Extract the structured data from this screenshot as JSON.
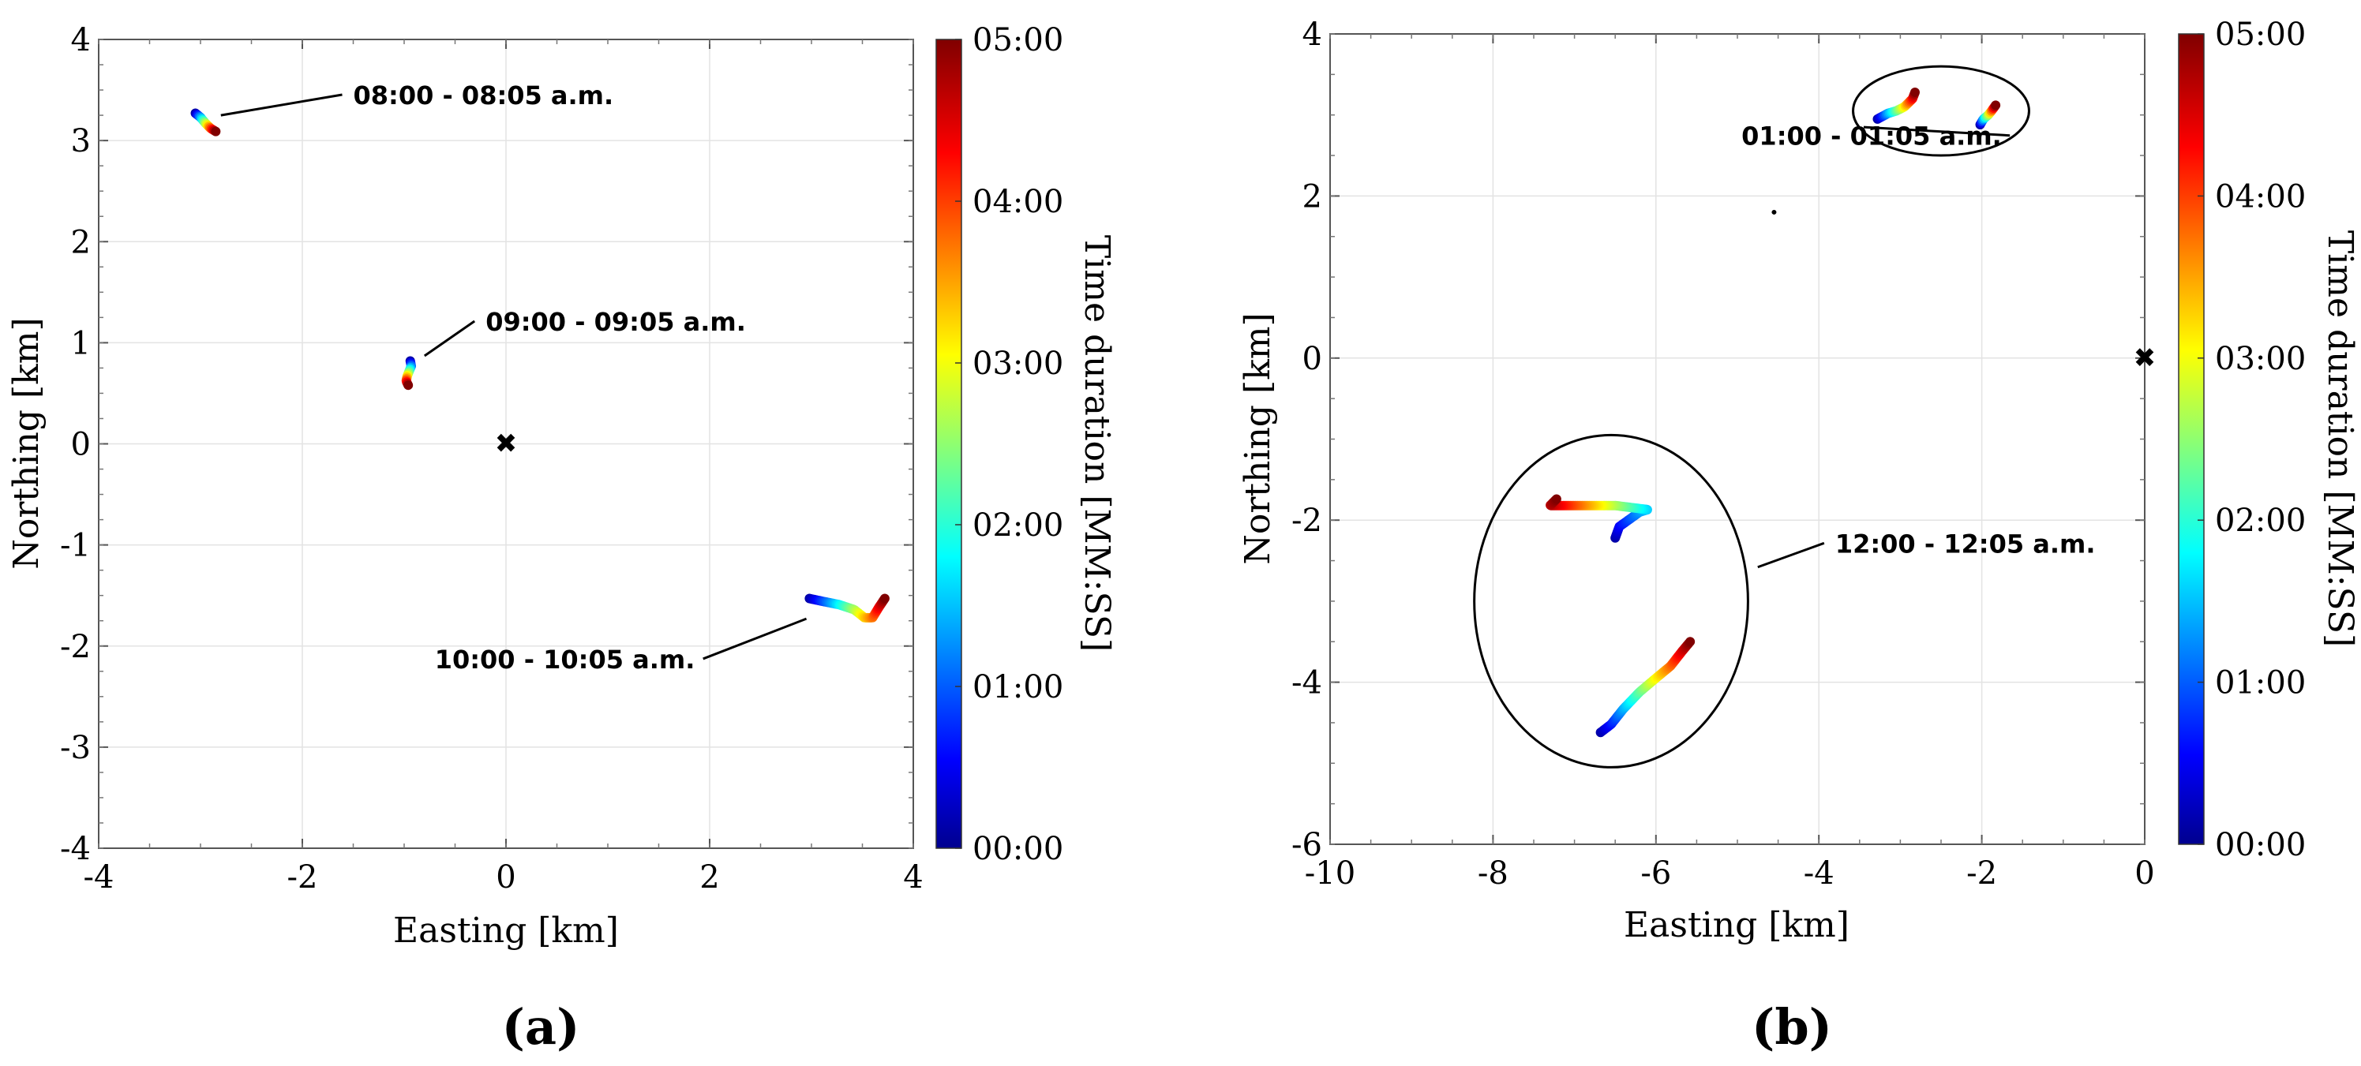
{
  "chart_data": [
    {
      "type": "scatter",
      "panel_label": "(a)",
      "xlabel": "Easting [km]",
      "ylabel": "Northing [km]",
      "xlim": [
        -4,
        4
      ],
      "ylim": [
        -4,
        4
      ],
      "xticks": [
        -4,
        -2,
        0,
        2,
        4
      ],
      "yticks": [
        -4,
        -3,
        -2,
        -1,
        0,
        1,
        2,
        3,
        4
      ],
      "xtick_labels": [
        "-4",
        "-2",
        "0",
        "2",
        "4"
      ],
      "ytick_labels": [
        "-4",
        "-3",
        "-2",
        "-1",
        "0",
        "1",
        "2",
        "3",
        "4"
      ],
      "grid": true,
      "colorbar": {
        "label": "Time duration [MM:SS]",
        "range": [
          0,
          300
        ],
        "ticks": [
          "00:00",
          "01:00",
          "02:00",
          "03:00",
          "04:00",
          "05:00"
        ],
        "colormap": "jet"
      },
      "marker": {
        "symbol": "x",
        "x": 0,
        "y": 0
      },
      "tracks": [
        {
          "points": [
            [
              -3.05,
              3.27
            ],
            [
              -3.0,
              3.23
            ],
            [
              -2.95,
              3.17
            ],
            [
              -2.9,
              3.12
            ],
            [
              -2.85,
              3.09
            ]
          ]
        },
        {
          "points": [
            [
              -0.94,
              0.82
            ],
            [
              -0.93,
              0.77
            ],
            [
              -0.95,
              0.72
            ],
            [
              -0.97,
              0.67
            ],
            [
              -0.98,
              0.62
            ],
            [
              -0.96,
              0.58
            ]
          ]
        },
        {
          "points": [
            [
              2.98,
              -1.53
            ],
            [
              3.12,
              -1.56
            ],
            [
              3.27,
              -1.59
            ],
            [
              3.42,
              -1.64
            ],
            [
              3.52,
              -1.72
            ],
            [
              3.6,
              -1.72
            ],
            [
              3.66,
              -1.62
            ],
            [
              3.72,
              -1.53
            ]
          ]
        }
      ],
      "annotations": [
        {
          "text": "08:00 - 08:05 a.m.",
          "at": [
            -2.8,
            3.25
          ],
          "text_at": [
            -1.5,
            3.36
          ]
        },
        {
          "text": "09:00 - 09:05 a.m.",
          "at": [
            -0.8,
            0.87
          ],
          "text_at": [
            -0.2,
            1.12
          ]
        },
        {
          "text": "10:00 - 10:05 a.m.",
          "at": [
            2.95,
            -1.73
          ],
          "text_at": [
            -0.7,
            -2.22
          ]
        }
      ]
    },
    {
      "type": "scatter",
      "panel_label": "(b)",
      "xlabel": "Easting [km]",
      "ylabel": "Northing [km]",
      "xlim": [
        -10,
        0
      ],
      "ylim": [
        -6,
        4
      ],
      "xticks": [
        -10,
        -8,
        -6,
        -4,
        -2,
        0
      ],
      "yticks": [
        -6,
        -4,
        -2,
        0,
        2,
        4
      ],
      "xtick_labels": [
        "-10",
        "-8",
        "-6",
        "-4",
        "-2",
        "0"
      ],
      "ytick_labels": [
        "-6",
        "-4",
        "-2",
        "0",
        "2",
        "4"
      ],
      "grid": true,
      "colorbar": {
        "label": "Time duration [MM:SS]",
        "range": [
          0,
          300
        ],
        "ticks": [
          "00:00",
          "01:00",
          "02:00",
          "03:00",
          "04:00",
          "05:00"
        ],
        "colormap": "jet"
      },
      "marker": {
        "symbol": "x",
        "x": 0,
        "y": 0
      },
      "dot": {
        "x": -4.55,
        "y": 1.8
      },
      "tracks": [
        {
          "points": [
            [
              -3.28,
              2.95
            ],
            [
              -3.15,
              3.02
            ],
            [
              -3.05,
              3.05
            ],
            [
              -2.95,
              3.1
            ],
            [
              -2.85,
              3.2
            ],
            [
              -2.82,
              3.28
            ]
          ]
        },
        {
          "points": [
            [
              -2.02,
              2.88
            ],
            [
              -1.98,
              2.95
            ],
            [
              -1.92,
              3.0
            ],
            [
              -1.88,
              3.05
            ],
            [
              -1.83,
              3.12
            ]
          ]
        },
        {
          "points": [
            [
              -6.5,
              -2.22
            ],
            [
              -6.45,
              -2.08
            ],
            [
              -6.2,
              -1.9
            ],
            [
              -6.1,
              -1.87
            ],
            [
              -6.5,
              -1.82
            ],
            [
              -7.0,
              -1.82
            ],
            [
              -7.2,
              -1.82
            ],
            [
              -7.3,
              -1.82
            ],
            [
              -7.22,
              -1.74
            ]
          ]
        },
        {
          "points": [
            [
              -6.68,
              -4.62
            ],
            [
              -6.55,
              -4.52
            ],
            [
              -6.4,
              -4.33
            ],
            [
              -6.2,
              -4.12
            ],
            [
              -6.0,
              -3.95
            ],
            [
              -5.82,
              -3.8
            ],
            [
              -5.68,
              -3.62
            ],
            [
              -5.58,
              -3.5
            ]
          ]
        }
      ],
      "ellipses": [
        {
          "cx": -2.5,
          "cy": 3.05,
          "rx": 1.08,
          "ry": 0.55
        },
        {
          "cx": -6.55,
          "cy": -3.0,
          "rx": 1.68,
          "ry": 2.05
        }
      ],
      "annotations": [
        {
          "text": "01:00 - 01:05 a.m.",
          "at": [
            -3.45,
            2.85
          ],
          "text_at": [
            -4.95,
            2.63
          ]
        },
        {
          "text": "12:00 - 12:05 a.m.",
          "at": [
            -4.75,
            -2.58
          ],
          "text_at": [
            -3.8,
            -2.4
          ]
        }
      ]
    }
  ]
}
